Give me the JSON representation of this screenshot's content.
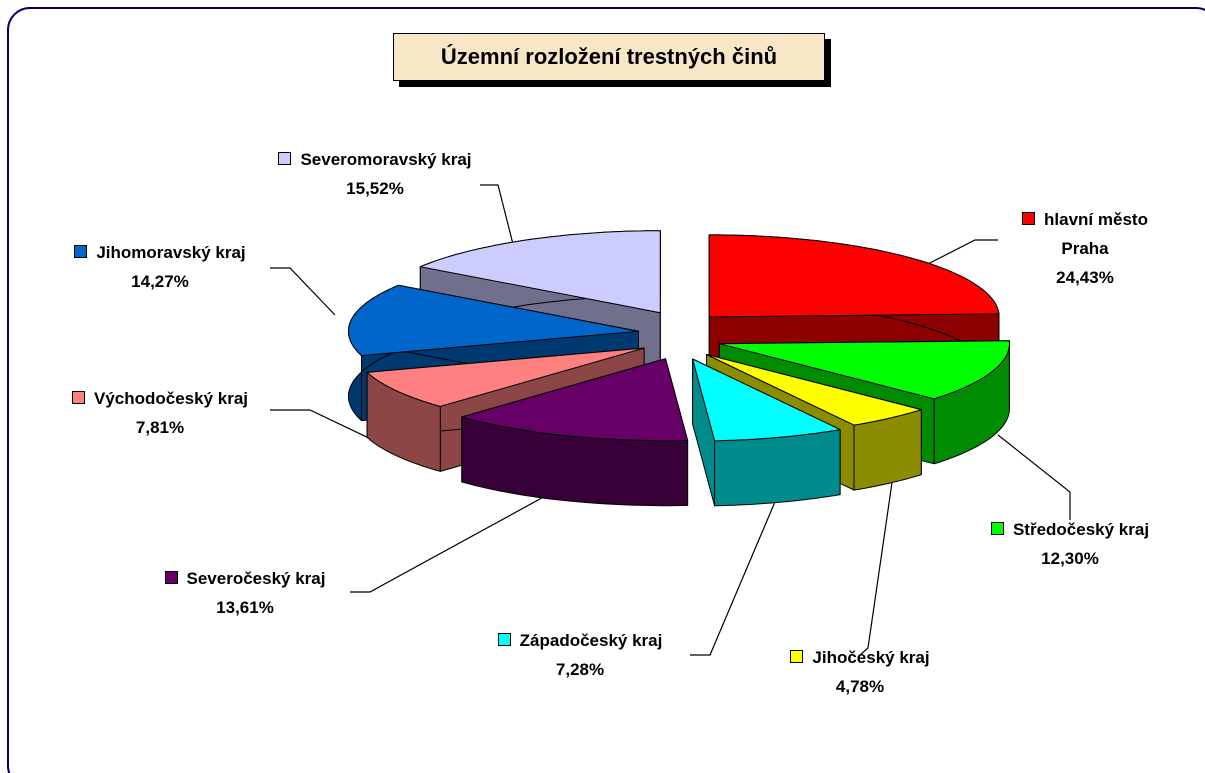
{
  "chart_data": {
    "type": "pie3d",
    "title": "Územní rozložení trestných činů",
    "categories": [
      "hlavní město Praha",
      "Středočeský kraj",
      "Jihočeský kraj",
      "Západočeský kraj",
      "Severočeský kraj",
      "Východočeský kraj",
      "Jihomoravský kraj",
      "Severomoravský kraj"
    ],
    "values": [
      24.43,
      12.3,
      4.78,
      7.28,
      13.61,
      7.81,
      14.27,
      15.52
    ],
    "value_labels": [
      "24,43%",
      "12,30%",
      "4,78%",
      "7,28%",
      "13,61%",
      "7,81%",
      "14,27%",
      "15,52%"
    ],
    "colors": [
      "#ff0000",
      "#00ff00",
      "#ffff00",
      "#00ffff",
      "#660066",
      "#ff8080",
      "#0066cc",
      "#ccccff"
    ]
  }
}
